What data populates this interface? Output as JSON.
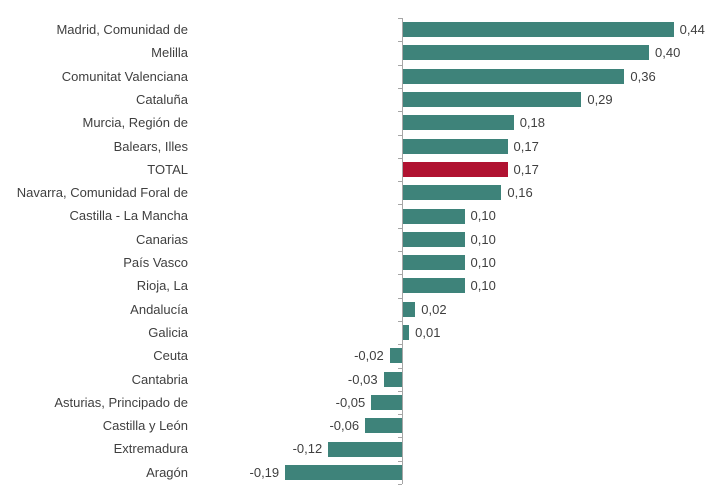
{
  "chart_data": {
    "type": "bar",
    "orientation": "horizontal",
    "title": "",
    "xlabel": "",
    "ylabel": "",
    "grid": false,
    "legend": false,
    "xlim": [
      -0.25,
      0.53
    ],
    "categories": [
      "Madrid, Comunidad de",
      "Melilla",
      "Comunitat Valenciana",
      "Cataluña",
      "Murcia, Región de",
      "Balears, Illes",
      "TOTAL",
      "Navarra, Comunidad Foral de",
      "Castilla - La Mancha",
      "Canarias",
      "País Vasco",
      "Rioja, La",
      "Andalucía",
      "Galicia",
      "Ceuta",
      "Cantabria",
      "Asturias, Principado de",
      "Castilla y León",
      "Extremadura",
      "Aragón"
    ],
    "values": [
      0.44,
      0.4,
      0.36,
      0.29,
      0.18,
      0.17,
      0.17,
      0.16,
      0.1,
      0.1,
      0.1,
      0.1,
      0.02,
      0.01,
      -0.02,
      -0.03,
      -0.05,
      -0.06,
      -0.12,
      -0.19
    ],
    "value_labels": [
      "0,44",
      "0,40",
      "0,36",
      "0,29",
      "0,18",
      "0,17",
      "0,17",
      "0,16",
      "0,10",
      "0,10",
      "0,10",
      "0,10",
      "0,02",
      "0,01",
      "-0,02",
      "-0,03",
      "-0,05",
      "-0,06",
      "-0,12",
      "-0,19"
    ],
    "highlight_index": 6,
    "bar_color": "#3E837A",
    "highlight_color": "#B01231",
    "axis_color": "#A6A6A6",
    "text_color": "#3F3F3F"
  }
}
